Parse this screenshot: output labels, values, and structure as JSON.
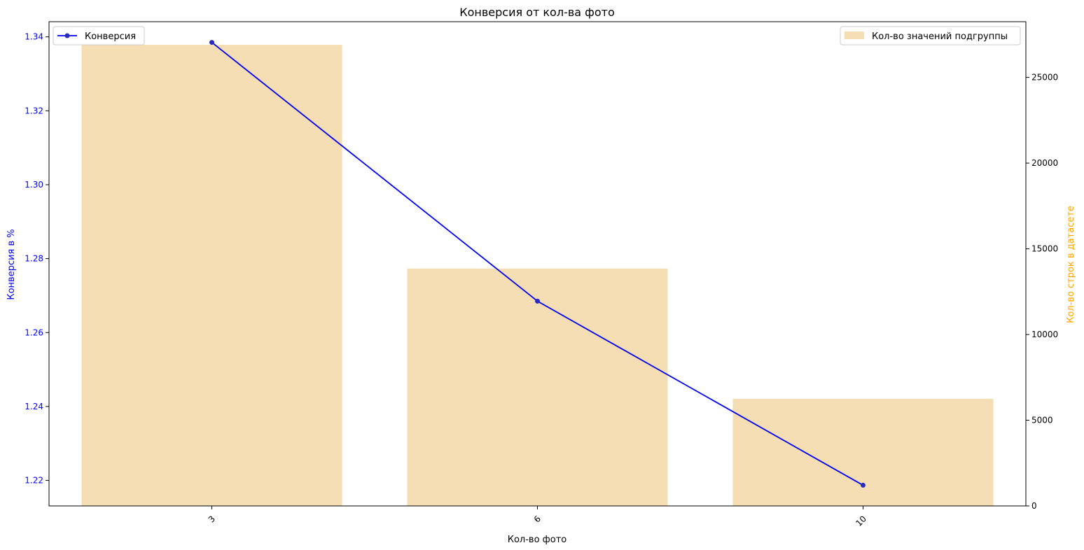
{
  "chart_data": {
    "type": "bar+line",
    "title": "Конверсия от кол-ва фото",
    "xlabel": "Кол-во фото",
    "ylabel_left": "Конверсия в %",
    "ylabel_right": "Кол-во строк в датасете",
    "categories": [
      "3",
      "6",
      "10"
    ],
    "x_tick_rotation": 45,
    "bars": {
      "name": "Кол-во значений подгруппы",
      "values": [
        26900,
        13850,
        6250
      ],
      "color": "#f5deb3",
      "axis": "right"
    },
    "line": {
      "name": "Конверсия",
      "values": [
        1.3385,
        1.2685,
        1.2187
      ],
      "color": "#0000ff",
      "marker_color": "#2b2bbf",
      "axis": "left"
    },
    "ylim_left": [
      1.2131,
      1.3441
    ],
    "ylim_right": [
      0,
      28250
    ],
    "yticks_left": [
      "1.22",
      "1.24",
      "1.26",
      "1.28",
      "1.30",
      "1.32",
      "1.34"
    ],
    "yticks_right": [
      "0",
      "5000",
      "10000",
      "15000",
      "20000",
      "25000"
    ],
    "legend_line_position": "upper left",
    "legend_bars_position": "upper right",
    "colors": {
      "left_axis": "#0000ff",
      "right_axis_label": "#ffa500",
      "text": "#000000"
    }
  }
}
